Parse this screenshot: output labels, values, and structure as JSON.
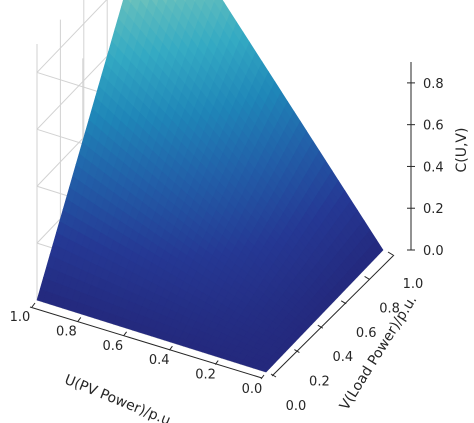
{
  "chart_data": {
    "type": "surface3d",
    "xlabel": "U(PV Power)/p.u.",
    "ylabel": "V(Load Power)/p.u.",
    "zlabel": "C(U,V)",
    "xlim": [
      0.0,
      1.0
    ],
    "ylim": [
      0.0,
      1.0
    ],
    "zlim": [
      0.0,
      0.9
    ],
    "xticks": [
      "0.0",
      "0.2",
      "0.4",
      "0.6",
      "0.8",
      "1.0"
    ],
    "yticks": [
      "0.0",
      "0.2",
      "0.4",
      "0.6",
      "0.8",
      "1.0"
    ],
    "zticks": [
      "0.0",
      "0.2",
      "0.4",
      "0.6",
      "0.8"
    ],
    "colormap": "YlGnBu_r",
    "grid": true,
    "surface": {
      "description_values": "C(U,V) over the unit square; corner values",
      "u": [
        0.0,
        0.2,
        0.4,
        0.6,
        0.8,
        1.0
      ],
      "v": [
        0.0,
        0.2,
        0.4,
        0.6,
        0.8,
        1.0
      ],
      "corners": {
        "u0_v0": 0.0,
        "u1_v0": 0.0,
        "u0_v1": 0.0,
        "u1_v1": 1.0
      }
    },
    "colors": {
      "low": "#23308d",
      "mid": "#32a3c2",
      "high": "#fbfdcb"
    }
  }
}
